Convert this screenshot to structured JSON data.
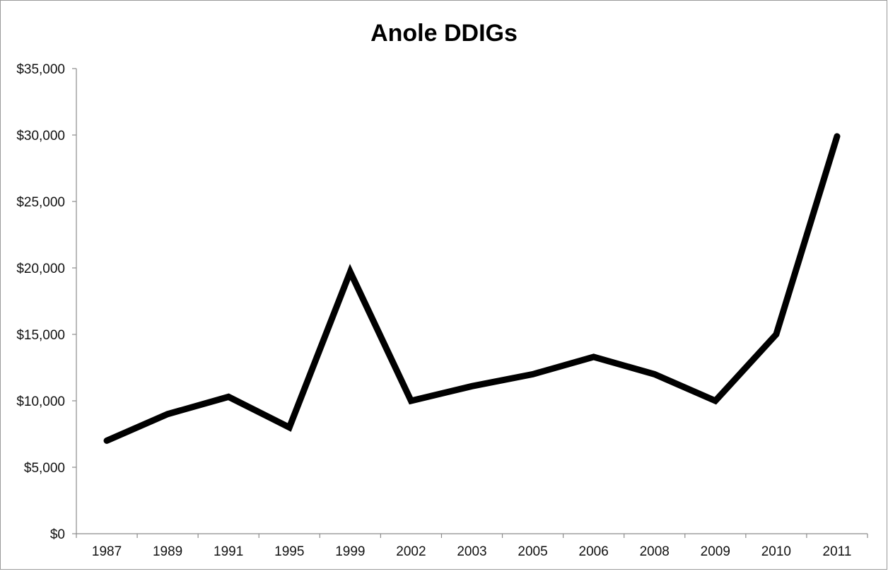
{
  "chart_data": {
    "type": "line",
    "title": "Anole DDIGs",
    "xlabel": "",
    "ylabel": "",
    "categories": [
      "1987",
      "1989",
      "1991",
      "1995",
      "1999",
      "2002",
      "2003",
      "2005",
      "2006",
      "2008",
      "2009",
      "2010",
      "2011"
    ],
    "series": [
      {
        "values": [
          7000,
          9000,
          10300,
          8000,
          19700,
          10000,
          11100,
          12000,
          13300,
          12000,
          10000,
          15000,
          29900
        ]
      }
    ],
    "ylim": [
      0,
      35000
    ],
    "yticks": [
      0,
      5000,
      10000,
      15000,
      20000,
      25000,
      30000,
      35000
    ],
    "ytick_labels": [
      "$0",
      "$5,000",
      "$10,000",
      "$15,000",
      "$20,000",
      "$25,000",
      "$30,000",
      "$35,000"
    ],
    "grid": false,
    "legend": "none",
    "line_color": "#000000"
  }
}
